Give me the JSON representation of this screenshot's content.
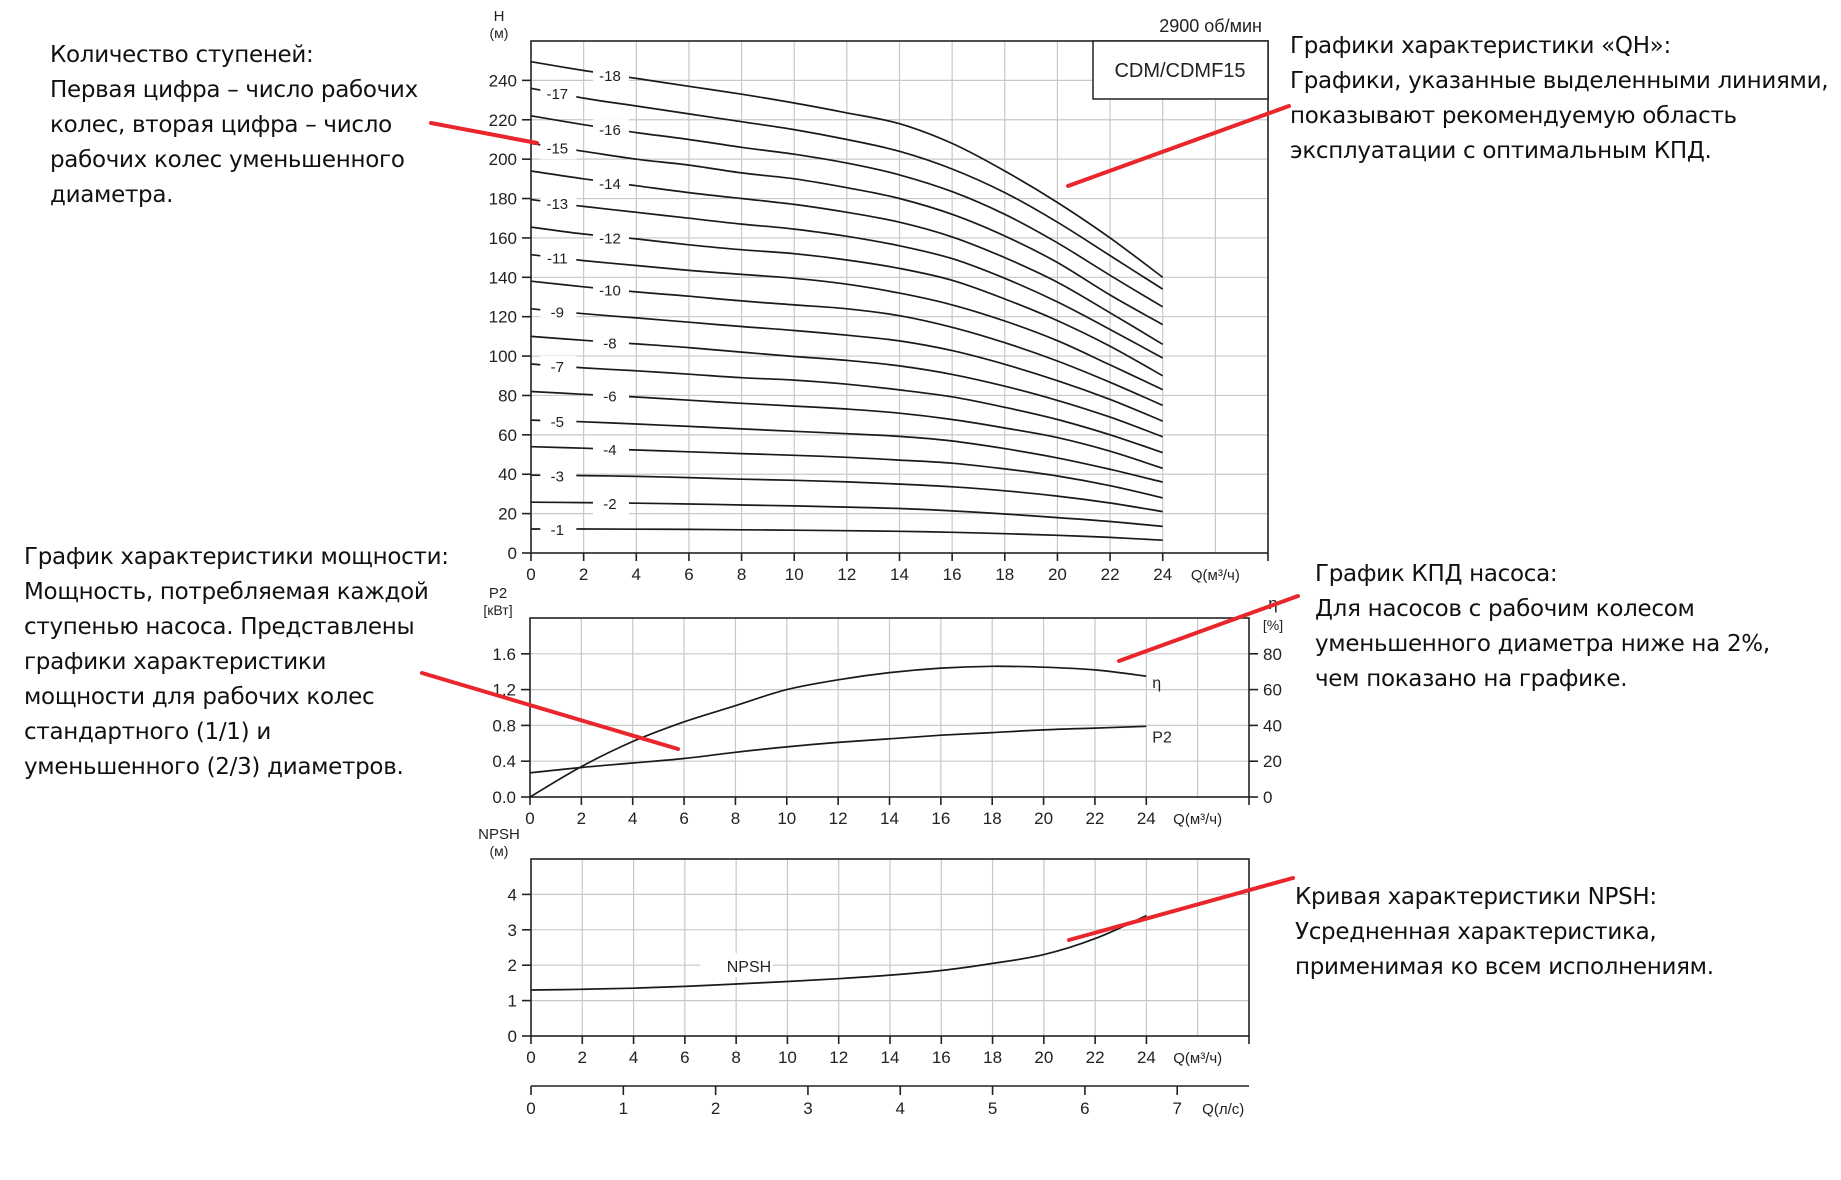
{
  "header": {
    "speed": "2900 об/мин",
    "model": "CDM/CDMF15"
  },
  "annotations": {
    "stages": {
      "lines": [
        "Количество ступеней:",
        "Первая цифра – число рабочих",
        "колес, вторая цифра – число",
        "рабочих колес уменьшенного",
        "диаметра."
      ]
    },
    "qh": {
      "lines": [
        "Графики характеристики «QH»:",
        "Графики, указанные выделенными линиями,",
        "показывают рекомендуемую область",
        "эксплуатации с оптимальным КПД."
      ]
    },
    "power": {
      "lines": [
        "График характеристики мощности:",
        "Мощность, потребляемая каждой",
        "ступенью насоса. Представлены",
        "графики характеристики",
        "мощности для рабочих колес",
        "стандартного (1/1) и",
        "уменьшенного (2/3) диаметров."
      ]
    },
    "efficiency": {
      "lines": [
        "График КПД насоса:",
        "Для насосов с рабочим колесом",
        "уменьшенного диаметра ниже на 2%,",
        "чем показано на графике."
      ]
    },
    "npsh": {
      "lines": [
        "Кривая характеристики NPSH:",
        "Усредненная характеристика,",
        "применимая ко всем исполнениям."
      ]
    },
    "pointer_color": "#e8262b"
  },
  "chart_data": [
    {
      "type": "line",
      "title": "CDM/CDMF15 — 2900 об/мин",
      "xlabel": "Q(м³/ч)",
      "ylabel": "H (м)",
      "ylabel_top": "H",
      "ylabel_unit": "(м)",
      "xlim": [
        0,
        28
      ],
      "ylim": [
        0,
        260
      ],
      "x_ticks": [
        0,
        2,
        4,
        6,
        8,
        10,
        12,
        14,
        16,
        18,
        20,
        22,
        24
      ],
      "y_ticks": [
        0,
        20,
        40,
        60,
        80,
        100,
        120,
        140,
        160,
        180,
        200,
        220,
        240
      ],
      "grid": true,
      "x": [
        0,
        2,
        4,
        6,
        8,
        10,
        12,
        14,
        16,
        18,
        20,
        22,
        24
      ],
      "series": [
        {
          "name": "-1",
          "values": [
            12.2,
            12.2,
            12.1,
            12.0,
            11.8,
            11.6,
            11.3,
            11.0,
            10.5,
            9.8,
            9.0,
            7.9,
            6.5
          ]
        },
        {
          "name": "-2",
          "values": [
            25.8,
            25.6,
            25.3,
            24.9,
            24.4,
            23.9,
            23.3,
            22.6,
            21.4,
            19.8,
            18.0,
            16.0,
            13.5
          ]
        },
        {
          "name": "-3",
          "values": [
            39.5,
            39.3,
            38.9,
            38.3,
            37.5,
            36.9,
            36.1,
            35.0,
            33.6,
            31.6,
            28.9,
            25.4,
            21.0
          ]
        },
        {
          "name": "-4",
          "values": [
            54.0,
            53.2,
            52.3,
            51.4,
            50.5,
            49.6,
            48.6,
            47.2,
            45.6,
            42.7,
            39.1,
            34.2,
            28.0
          ]
        },
        {
          "name": "-5",
          "values": [
            67.5,
            66.6,
            65.5,
            64.3,
            63.0,
            61.8,
            60.6,
            59.2,
            56.9,
            53.0,
            48.3,
            42.5,
            36.0
          ]
        },
        {
          "name": "-6",
          "values": [
            82.0,
            80.6,
            79.2,
            77.6,
            76.0,
            74.6,
            73.1,
            71.0,
            67.8,
            63.5,
            58.6,
            51.7,
            43.0
          ]
        },
        {
          "name": "-7",
          "values": [
            96.0,
            94.0,
            92.5,
            90.8,
            89.0,
            87.8,
            85.7,
            82.8,
            79.3,
            74.0,
            67.8,
            60.0,
            51.0
          ]
        },
        {
          "name": "-8",
          "values": [
            110.0,
            108.0,
            106.2,
            104.3,
            102.0,
            99.8,
            97.8,
            95.0,
            90.7,
            84.7,
            77.5,
            69.0,
            59.0
          ]
        },
        {
          "name": "-9",
          "values": [
            124.0,
            121.5,
            119.4,
            117.2,
            115.0,
            113.0,
            110.6,
            107.7,
            102.8,
            95.8,
            87.5,
            78.0,
            67.0
          ]
        },
        {
          "name": "-10",
          "values": [
            138.0,
            135.2,
            132.6,
            130.4,
            128.0,
            126.0,
            124.0,
            120.5,
            114.6,
            106.8,
            97.5,
            86.7,
            75.0
          ]
        },
        {
          "name": "-11",
          "values": [
            151.5,
            148.5,
            146.0,
            143.5,
            141.5,
            139.5,
            136.5,
            132.0,
            126.0,
            117.8,
            107.8,
            95.5,
            83.0
          ]
        },
        {
          "name": "-12",
          "values": [
            165.5,
            162.0,
            159.5,
            156.5,
            154.0,
            152.0,
            148.8,
            144.5,
            138.5,
            129.0,
            118.0,
            105.0,
            90.0
          ]
        },
        {
          "name": "-13",
          "values": [
            179.5,
            176.0,
            173.0,
            170.0,
            167.0,
            164.5,
            160.8,
            156.0,
            149.5,
            139.5,
            127.5,
            113.5,
            99.0
          ]
        },
        {
          "name": "-14",
          "values": [
            194.0,
            190.0,
            186.5,
            183.0,
            180.0,
            177.0,
            173.0,
            168.0,
            160.5,
            150.0,
            137.5,
            122.0,
            106.0
          ]
        },
        {
          "name": "-15",
          "values": [
            208.0,
            204.0,
            200.0,
            197.0,
            193.0,
            190.0,
            185.5,
            180.0,
            172.0,
            161.0,
            147.5,
            131.0,
            116.0
          ]
        },
        {
          "name": "-16",
          "values": [
            222.0,
            217.5,
            213.5,
            210.0,
            206.0,
            202.5,
            198.0,
            192.0,
            183.5,
            172.0,
            157.5,
            141.0,
            125.0
          ]
        },
        {
          "name": "-17",
          "values": [
            236.0,
            231.0,
            227.0,
            223.0,
            219.0,
            215.0,
            210.0,
            204.0,
            195.0,
            183.0,
            168.0,
            151.0,
            134.0
          ]
        },
        {
          "name": "-18",
          "values": [
            249.5,
            245.0,
            241.0,
            237.0,
            233.0,
            228.5,
            223.5,
            218.0,
            208.0,
            194.0,
            178.0,
            160.0,
            140.0
          ]
        }
      ]
    },
    {
      "type": "line",
      "title": "P2 / η",
      "xlabel": "Q(м³/ч)",
      "ylabel": "P2 [кВт]",
      "ylabel_top": "P2",
      "ylabel_unit": "[кВт]",
      "y2label": "η [%]",
      "y2label_top": "η",
      "y2label_unit": "[%]",
      "xlim": [
        0,
        28
      ],
      "ylim": [
        0,
        2.0
      ],
      "y2lim": [
        0,
        100
      ],
      "x_ticks": [
        0,
        2,
        4,
        6,
        8,
        10,
        12,
        14,
        16,
        18,
        20,
        22,
        24
      ],
      "y_ticks": [
        0.0,
        0.4,
        0.8,
        1.2,
        1.6
      ],
      "y_tick_labels": [
        "0.0",
        "0.4",
        "0.8",
        "1.2",
        "1.6"
      ],
      "y2_ticks": [
        0,
        20,
        40,
        60,
        80
      ],
      "grid": true,
      "x": [
        0,
        2,
        4,
        6,
        8,
        10,
        12,
        14,
        16,
        18,
        20,
        22,
        24
      ],
      "series": [
        {
          "name": "P2",
          "axis": "left",
          "values": [
            0.27,
            0.33,
            0.38,
            0.43,
            0.5,
            0.56,
            0.61,
            0.65,
            0.69,
            0.72,
            0.75,
            0.77,
            0.79
          ]
        },
        {
          "name": "η",
          "axis": "right",
          "values": [
            0,
            17,
            31,
            42,
            51,
            60,
            65.5,
            69.5,
            72,
            73,
            72.5,
            71,
            67.5
          ]
        }
      ]
    },
    {
      "type": "line",
      "title": "NPSH",
      "xlabel": "Q(м³/ч)",
      "x2label": "Q(л/с)",
      "ylabel": "NPSH (м)",
      "ylabel_top": "NPSH",
      "ylabel_unit": "(м)",
      "xlim": [
        0,
        28
      ],
      "ylim": [
        0,
        5
      ],
      "x_ticks": [
        0,
        2,
        4,
        6,
        8,
        10,
        12,
        14,
        16,
        18,
        20,
        22,
        24
      ],
      "y_ticks": [
        0,
        1,
        2,
        3,
        4
      ],
      "x2_ticks": [
        0,
        1,
        2,
        3,
        4,
        5,
        6,
        7
      ],
      "grid": true,
      "x": [
        0,
        2,
        4,
        6,
        8,
        10,
        12,
        14,
        16,
        18,
        20,
        22,
        24
      ],
      "series": [
        {
          "name": "NPSH",
          "values": [
            1.3,
            1.32,
            1.35,
            1.4,
            1.47,
            1.54,
            1.62,
            1.72,
            1.85,
            2.05,
            2.3,
            2.75,
            3.4
          ]
        }
      ]
    }
  ]
}
